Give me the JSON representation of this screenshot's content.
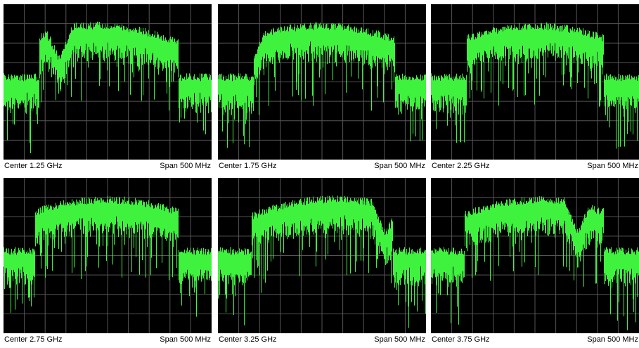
{
  "panels": [
    {
      "center": "Center 1.25 GHz",
      "span": "Span 500 MHz"
    },
    {
      "center": "Center 1.75 GHz",
      "span": "Span 500 MHz"
    },
    {
      "center": "Center 2.25 GHz",
      "span": "Span 500 MHz"
    },
    {
      "center": "Center 2.75 GHz",
      "span": "Span 500 MHz"
    },
    {
      "center": "Center 3.25 GHz",
      "span": "Span 500 MHz"
    },
    {
      "center": "Center 3.75 GHz",
      "span": "Span 500 MHz"
    }
  ]
}
